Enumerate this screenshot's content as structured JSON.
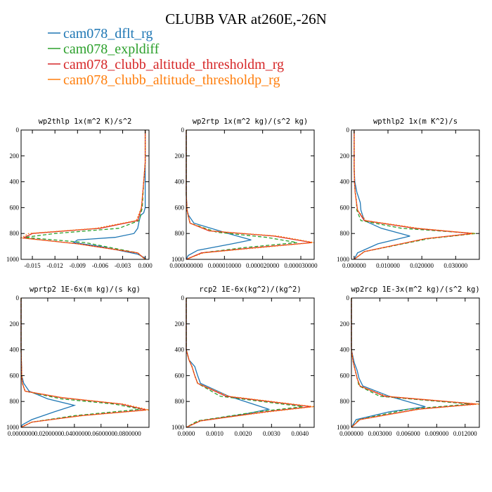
{
  "figure": {
    "title": "CLUBB VAR at260E,-26N",
    "legend": [
      {
        "label": "cam078_dflt_rg",
        "color": "#1f77b4"
      },
      {
        "label": "cam078_expldiff",
        "color": "#2ca02c"
      },
      {
        "label": "cam078_clubb_altitude_thresholdm_rg",
        "color": "#d62728"
      },
      {
        "label": "cam078_clubb_altitude_thresholdp_rg",
        "color": "#ff7f0e"
      }
    ]
  },
  "chart_data": [
    {
      "type": "line",
      "title": "wp2thlp  1x(m^2 K)/s^2",
      "ylim": [
        0,
        1000
      ],
      "y_inverted": true,
      "yticks": [
        0,
        200,
        400,
        600,
        800,
        1000
      ],
      "xlim": [
        -0.0165,
        0.0005
      ],
      "xticks": [
        -0.015,
        -0.012,
        -0.009,
        -0.006,
        -0.003,
        0.0
      ],
      "xtick_labels": [
        "-0.015",
        "-0.012",
        "-0.009",
        "-0.006",
        "-0.003",
        "0.000"
      ],
      "series": [
        {
          "name": "cam078_dflt_rg",
          "color": "#1f77b4",
          "dash": "solid",
          "x": [
            0,
            0,
            0,
            0,
            0,
            -0.0002,
            -0.0006,
            -0.0008,
            -0.001,
            -0.0015,
            -0.004,
            -0.009,
            -0.0095,
            -0.006,
            -0.001,
            0,
            0
          ],
          "y": [
            0,
            150,
            300,
            500,
            600,
            640,
            660,
            700,
            760,
            800,
            830,
            850,
            870,
            900,
            960,
            990,
            1000
          ]
        },
        {
          "name": "cam078_expldiff",
          "color": "#2ca02c",
          "dash": "dash",
          "x": [
            0,
            0,
            0,
            -0.0002,
            -0.0004,
            -0.0008,
            -0.0035,
            -0.012,
            -0.016,
            -0.008,
            -0.001,
            0
          ],
          "y": [
            0,
            150,
            250,
            400,
            600,
            700,
            760,
            800,
            830,
            870,
            950,
            1000
          ]
        },
        {
          "name": "cam078_clubb_altitude_thresholdm_rg",
          "color": "#d62728",
          "dash": "solid",
          "x": [
            0,
            0,
            0,
            -0.0002,
            -0.0005,
            -0.001,
            -0.006,
            -0.015,
            -0.0162,
            -0.009,
            -0.001,
            0
          ],
          "y": [
            0,
            150,
            250,
            400,
            600,
            700,
            760,
            800,
            835,
            880,
            950,
            1000
          ]
        },
        {
          "name": "cam078_clubb_altitude_thresholdp_rg",
          "color": "#ff7f0e",
          "dash": "dot",
          "x": [
            0,
            0,
            0,
            -0.0002,
            -0.0005,
            -0.0012,
            -0.0065,
            -0.0155,
            -0.0165,
            -0.009,
            -0.001,
            0
          ],
          "y": [
            0,
            150,
            250,
            400,
            600,
            700,
            760,
            800,
            835,
            880,
            950,
            1000
          ]
        }
      ]
    },
    {
      "type": "line",
      "title": "wp2rtp  1x(m^2 kg)/(s^2 kg)",
      "ylim": [
        0,
        1000
      ],
      "y_inverted": true,
      "yticks": [
        0,
        200,
        400,
        600,
        800,
        1000
      ],
      "xlim": [
        0,
        3.35e-05
      ],
      "xticks": [
        0,
        1e-05,
        2e-05,
        3e-05
      ],
      "xtick_labels": [
        "0.000000000",
        "0.000010000",
        "0.000020000",
        "0.000030000"
      ],
      "series": [
        {
          "name": "cam078_dflt_rg",
          "color": "#1f77b4",
          "dash": "solid",
          "x": [
            0,
            0,
            0,
            2e-07,
            6e-07,
            2e-06,
            1.1e-05,
            1.7e-05,
            1.2e-05,
            3e-06,
            5e-07,
            0
          ],
          "y": [
            0,
            200,
            500,
            620,
            660,
            720,
            800,
            850,
            880,
            930,
            970,
            1000
          ]
        },
        {
          "name": "cam078_expldiff",
          "color": "#2ca02c",
          "dash": "dash",
          "x": [
            0,
            0,
            0,
            2e-07,
            5e-07,
            1e-06,
            8e-06,
            2.1e-05,
            2.9e-05,
            1.5e-05,
            4e-06,
            0
          ],
          "y": [
            0,
            200,
            500,
            620,
            660,
            720,
            790,
            830,
            870,
            910,
            950,
            1000
          ]
        },
        {
          "name": "cam078_clubb_altitude_thresholdm_rg",
          "color": "#d62728",
          "dash": "solid",
          "x": [
            0,
            0,
            0,
            2e-07,
            5e-07,
            1e-06,
            6e-06,
            2.3e-05,
            3.3e-05,
            1.8e-05,
            4e-06,
            0
          ],
          "y": [
            0,
            200,
            500,
            620,
            660,
            720,
            780,
            820,
            870,
            910,
            950,
            1000
          ]
        },
        {
          "name": "cam078_clubb_altitude_thresholdp_rg",
          "color": "#ff7f0e",
          "dash": "dot",
          "x": [
            0,
            0,
            0,
            2e-07,
            5e-07,
            1e-06,
            6.5e-06,
            2.4e-05,
            3.35e-05,
            1.9e-05,
            4.5e-06,
            0
          ],
          "y": [
            0,
            200,
            500,
            620,
            660,
            720,
            780,
            820,
            870,
            910,
            950,
            1000
          ]
        }
      ]
    },
    {
      "type": "line",
      "title": "wpthlp2  1x(m K^2)/s",
      "ylim": [
        0,
        1000
      ],
      "y_inverted": true,
      "yticks": [
        0,
        200,
        400,
        600,
        800,
        1000
      ],
      "xlim": [
        -0.0008,
        0.037
      ],
      "xticks": [
        0,
        0.01,
        0.02,
        0.03
      ],
      "xtick_labels": [
        "0.000000",
        "0.010000",
        "0.020000",
        "0.030000"
      ],
      "series": [
        {
          "name": "cam078_dflt_rg",
          "color": "#1f77b4",
          "dash": "solid",
          "x": [
            0,
            0,
            0,
            0.0002,
            0.0008,
            0.0018,
            0.002,
            0.003,
            0.008,
            0.0165,
            0.007,
            0.001,
            0
          ],
          "y": [
            0,
            200,
            300,
            400,
            480,
            560,
            620,
            700,
            760,
            820,
            880,
            950,
            1000
          ]
        },
        {
          "name": "cam078_expldiff",
          "color": "#2ca02c",
          "dash": "dash",
          "x": [
            0,
            0,
            0,
            0.0001,
            0.0003,
            0.0007,
            0.0008,
            0.002,
            0.014,
            0.036,
            0.022,
            0.003,
            0
          ],
          "y": [
            0,
            200,
            300,
            400,
            480,
            560,
            620,
            700,
            760,
            800,
            840,
            940,
            1000
          ]
        },
        {
          "name": "cam078_clubb_altitude_thresholdm_rg",
          "color": "#d62728",
          "dash": "solid",
          "x": [
            0,
            0,
            0,
            0.0001,
            0.0003,
            0.0007,
            0.001,
            0.003,
            0.018,
            0.035,
            0.021,
            0.003,
            0
          ],
          "y": [
            0,
            200,
            300,
            400,
            480,
            560,
            620,
            700,
            760,
            800,
            840,
            940,
            1000
          ]
        },
        {
          "name": "cam078_clubb_altitude_thresholdp_rg",
          "color": "#ff7f0e",
          "dash": "dot",
          "x": [
            0,
            0,
            0,
            0.0001,
            0.0003,
            0.0007,
            0.001,
            0.0035,
            0.019,
            0.0355,
            0.021,
            0.003,
            0
          ],
          "y": [
            0,
            200,
            300,
            400,
            480,
            560,
            620,
            700,
            760,
            800,
            840,
            940,
            1000
          ]
        }
      ]
    },
    {
      "type": "line",
      "title": "wprtp2  1E-6x(m kg)/(s kg)",
      "ylim": [
        0,
        1000
      ],
      "y_inverted": true,
      "yticks": [
        0,
        200,
        400,
        600,
        800,
        1000
      ],
      "xlim": [
        0,
        0.096
      ],
      "xticks": [
        0,
        0.02,
        0.04,
        0.06,
        0.08
      ],
      "xtick_labels": [
        "0.0000000",
        "0.0200000",
        "0.0400000",
        "0.0600000",
        "0.0800000"
      ],
      "series": [
        {
          "name": "cam078_dflt_rg",
          "color": "#1f77b4",
          "dash": "solid",
          "x": [
            0,
            0,
            0,
            0.0005,
            0.002,
            0.006,
            0.02,
            0.04,
            0.025,
            0.008,
            0.001,
            0
          ],
          "y": [
            0,
            200,
            400,
            600,
            660,
            720,
            780,
            830,
            880,
            940,
            980,
            1000
          ]
        },
        {
          "name": "cam078_expldiff",
          "color": "#2ca02c",
          "dash": "dash",
          "x": [
            0,
            0,
            0,
            0.0005,
            0.001,
            0.003,
            0.03,
            0.07,
            0.09,
            0.04,
            0.008,
            0
          ],
          "y": [
            0,
            200,
            400,
            600,
            660,
            720,
            780,
            820,
            860,
            910,
            960,
            1000
          ]
        },
        {
          "name": "cam078_clubb_altitude_thresholdm_rg",
          "color": "#d62728",
          "dash": "solid",
          "x": [
            0,
            0,
            0,
            0.0005,
            0.001,
            0.003,
            0.03,
            0.075,
            0.094,
            0.045,
            0.008,
            0
          ],
          "y": [
            0,
            200,
            400,
            600,
            660,
            720,
            770,
            820,
            865,
            910,
            960,
            1000
          ]
        },
        {
          "name": "cam078_clubb_altitude_thresholdp_rg",
          "color": "#ff7f0e",
          "dash": "dot",
          "x": [
            0,
            0,
            0,
            0.0005,
            0.001,
            0.003,
            0.031,
            0.077,
            0.096,
            0.046,
            0.008,
            0
          ],
          "y": [
            0,
            200,
            400,
            600,
            660,
            720,
            770,
            820,
            865,
            910,
            960,
            1000
          ]
        }
      ]
    },
    {
      "type": "line",
      "title": "rcp2  1E-6x(kg^2)/(kg^2)",
      "ylim": [
        0,
        1000
      ],
      "y_inverted": true,
      "yticks": [
        0,
        200,
        400,
        600,
        800,
        1000
      ],
      "xlim": [
        0,
        0.0045
      ],
      "xticks": [
        0,
        0.001,
        0.002,
        0.003,
        0.004
      ],
      "xtick_labels": [
        "0.0000",
        "0.0010",
        "0.0020",
        "0.0030",
        "0.0040"
      ],
      "series": [
        {
          "name": "cam078_dflt_rg",
          "color": "#1f77b4",
          "dash": "solid",
          "x": [
            0,
            0,
            0,
            0.0001,
            0.0003,
            0.0004,
            0.0005,
            0.0015,
            0.0029,
            0.002,
            0.0005,
            0
          ],
          "y": [
            0,
            200,
            400,
            480,
            530,
            600,
            660,
            760,
            860,
            900,
            950,
            1000
          ]
        },
        {
          "name": "cam078_expldiff",
          "color": "#2ca02c",
          "dash": "dash",
          "x": [
            0,
            0,
            0,
            0.0001,
            0.0002,
            0.0003,
            0.0004,
            0.0012,
            0.0041,
            0.0025,
            0.0004,
            0
          ],
          "y": [
            0,
            200,
            400,
            480,
            530,
            600,
            660,
            760,
            840,
            880,
            950,
            1000
          ]
        },
        {
          "name": "cam078_clubb_altitude_thresholdm_rg",
          "color": "#d62728",
          "dash": "solid",
          "x": [
            0,
            0,
            0,
            0.0001,
            0.0002,
            0.0003,
            0.0004,
            0.0014,
            0.0044,
            0.0028,
            0.0005,
            0
          ],
          "y": [
            0,
            200,
            400,
            480,
            530,
            600,
            660,
            760,
            840,
            880,
            950,
            1000
          ]
        },
        {
          "name": "cam078_clubb_altitude_thresholdp_rg",
          "color": "#ff7f0e",
          "dash": "dot",
          "x": [
            0,
            0,
            0,
            0.0001,
            0.0002,
            0.0003,
            0.0004,
            0.0015,
            0.0045,
            0.0029,
            0.0005,
            0
          ],
          "y": [
            0,
            200,
            400,
            480,
            530,
            600,
            660,
            760,
            840,
            880,
            950,
            1000
          ]
        }
      ]
    },
    {
      "type": "line",
      "title": "wp2rcp  1E-3x(m^2 kg)/(s^2 kg)",
      "ylim": [
        0,
        1000
      ],
      "y_inverted": true,
      "yticks": [
        0,
        200,
        400,
        600,
        800,
        1000
      ],
      "xlim": [
        0,
        0.0135
      ],
      "xticks": [
        0,
        0.003,
        0.006,
        0.009,
        0.012
      ],
      "xtick_labels": [
        "0.000000",
        "0.003000",
        "0.006000",
        "0.009000",
        "0.012000"
      ],
      "series": [
        {
          "name": "cam078_dflt_rg",
          "color": "#1f77b4",
          "dash": "solid",
          "x": [
            0,
            0,
            0,
            0.0003,
            0.0006,
            0.0008,
            0.0012,
            0.004,
            0.0078,
            0.004,
            0.0005,
            0
          ],
          "y": [
            0,
            200,
            400,
            500,
            560,
            620,
            680,
            760,
            840,
            880,
            940,
            1000
          ]
        },
        {
          "name": "cam078_expldiff",
          "color": "#2ca02c",
          "dash": "dash",
          "x": [
            0,
            0,
            0,
            0.0002,
            0.0004,
            0.0006,
            0.0008,
            0.003,
            0.0125,
            0.006,
            0.0008,
            0
          ],
          "y": [
            0,
            200,
            400,
            500,
            560,
            620,
            680,
            760,
            820,
            860,
            940,
            1000
          ]
        },
        {
          "name": "cam078_clubb_altitude_thresholdm_rg",
          "color": "#d62728",
          "dash": "solid",
          "x": [
            0,
            0,
            0,
            0.0002,
            0.0004,
            0.0006,
            0.0009,
            0.0035,
            0.0132,
            0.007,
            0.0009,
            0
          ],
          "y": [
            0,
            200,
            400,
            500,
            560,
            620,
            680,
            760,
            820,
            860,
            940,
            1000
          ]
        },
        {
          "name": "cam078_clubb_altitude_thresholdp_rg",
          "color": "#ff7f0e",
          "dash": "dot",
          "x": [
            0,
            0,
            0,
            0.0002,
            0.0004,
            0.0006,
            0.0009,
            0.0037,
            0.0135,
            0.0072,
            0.0009,
            0
          ],
          "y": [
            0,
            200,
            400,
            500,
            560,
            620,
            680,
            760,
            820,
            860,
            940,
            1000
          ]
        }
      ]
    }
  ]
}
